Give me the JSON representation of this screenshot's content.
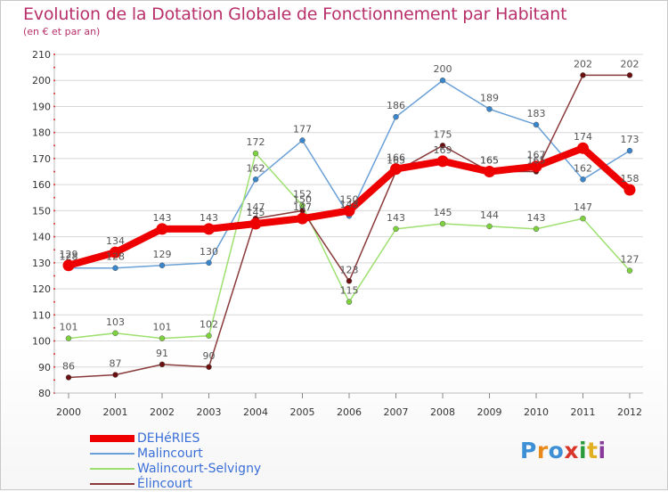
{
  "title": "Evolution de la Dotation Globale de Fonctionnement par Habitant",
  "subtitle": "(en € et par an)",
  "logo_text": [
    "P",
    "r",
    "o",
    "x",
    "i",
    "t",
    "i"
  ],
  "chart_data": {
    "type": "line",
    "title": "Evolution de la Dotation Globale de Fonctionnement par Habitant",
    "ylabel": "(en € et par an)",
    "xlabel": "",
    "ylim": [
      80,
      210
    ],
    "yticks": [
      80,
      90,
      100,
      110,
      120,
      130,
      140,
      150,
      160,
      170,
      180,
      190,
      200,
      210
    ],
    "x": [
      "2000",
      "2001",
      "2002",
      "2003",
      "2004",
      "2005",
      "2006",
      "2007",
      "2008",
      "2009",
      "2010",
      "2011",
      "2012"
    ],
    "series": [
      {
        "name": "DEHéRIES",
        "color": "#ee0000",
        "marker_color": "#ee0000",
        "values": [
          129,
          134,
          143,
          143,
          145,
          147,
          150,
          166,
          169,
          165,
          167,
          174,
          158
        ],
        "labels": [
          "129",
          "134",
          "143",
          "143",
          "145",
          "147",
          "150",
          "166",
          "169",
          "165",
          "167",
          "174",
          "158"
        ]
      },
      {
        "name": "Malincourt",
        "color": "#6aa0d8",
        "marker_color": "#3a86cc",
        "values": [
          128,
          128,
          129,
          130,
          162,
          177,
          148,
          186,
          200,
          189,
          183,
          162,
          173
        ],
        "labels": [
          "128",
          "128",
          "129",
          "130",
          "162",
          "177",
          "148",
          "186",
          "200",
          "189",
          "183",
          "162",
          "173"
        ]
      },
      {
        "name": "Walincourt-Selvigny",
        "color": "#9ee070",
        "marker_color": "#7fd23f",
        "values": [
          101,
          103,
          101,
          102,
          172,
          152,
          115,
          143,
          145,
          144,
          143,
          147,
          127
        ],
        "labels": [
          "101",
          "103",
          "101",
          "102",
          "172",
          "152",
          "115",
          "143",
          "145",
          "144",
          "143",
          "147",
          "127"
        ]
      },
      {
        "name": "Élincourt",
        "color": "#8a3a3a",
        "marker_color": "#6b1010",
        "values": [
          86,
          87,
          91,
          90,
          147,
          150,
          123,
          165,
          175,
          165,
          165,
          202,
          202
        ],
        "labels": [
          "86",
          "87",
          "91",
          "90",
          "147",
          "150",
          "123",
          "165",
          "175",
          "165",
          "165",
          "202",
          "202"
        ]
      }
    ],
    "legend": [
      "DEHéRIES",
      "Malincourt",
      "Walincourt-Selvigny",
      "Élincourt"
    ]
  }
}
